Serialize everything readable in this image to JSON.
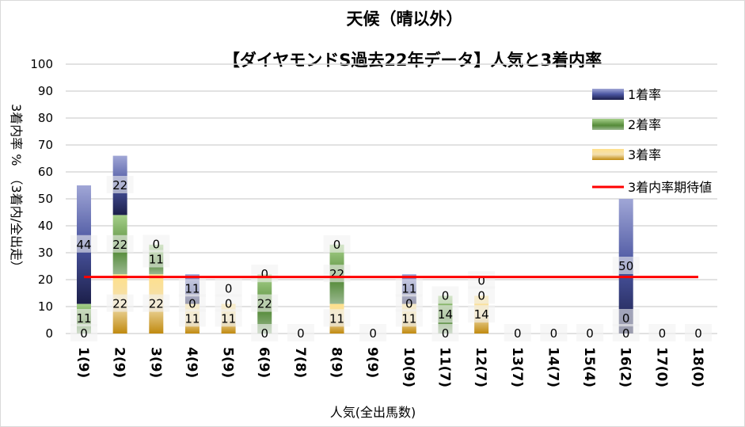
{
  "chart_data": {
    "type": "bar",
    "stacked": true,
    "title": "天候（晴以外）",
    "subtitle": "【ダイヤモンドS過去22年データ】人気と3着内率",
    "xlabel": "人気(全出馬数)",
    "ylabel": "3着内率 %　（3着内/全出走）",
    "ylim": [
      0,
      100
    ],
    "yticks": [
      "0",
      "10",
      "20",
      "30",
      "40",
      "50",
      "60",
      "70",
      "80",
      "90",
      "100"
    ],
    "grid": true,
    "legend_position": "top-right",
    "categories": [
      "1(9)",
      "2(9)",
      "3(9)",
      "4(9)",
      "5(9)",
      "6(9)",
      "7(8)",
      "8(9)",
      "9(9)",
      "10(9)",
      "11(7)",
      "12(7)",
      "13(7)",
      "14(7)",
      "15(4)",
      "16(2)",
      "17(0)",
      "18(0)"
    ],
    "series": [
      {
        "name": "3着率",
        "color": "#d9a520",
        "values": [
          0,
          22,
          22,
          11,
          11,
          0,
          0,
          11,
          0,
          11,
          0,
          14,
          0,
          0,
          0,
          0,
          0,
          0
        ]
      },
      {
        "name": "2着率",
        "color": "#5e9a3c",
        "values": [
          11,
          22,
          11,
          0,
          0,
          22,
          0,
          22,
          0,
          0,
          14,
          0,
          0,
          0,
          0,
          0,
          0,
          0
        ]
      },
      {
        "name": "1着率",
        "color": "#2e3a8c",
        "values": [
          44,
          22,
          0,
          11,
          0,
          0,
          0,
          0,
          0,
          11,
          0,
          0,
          0,
          0,
          0,
          50,
          0,
          0
        ]
      }
    ],
    "expected_line": {
      "name": "3着内率期待値",
      "value": 21,
      "color": "#ff0000"
    }
  }
}
